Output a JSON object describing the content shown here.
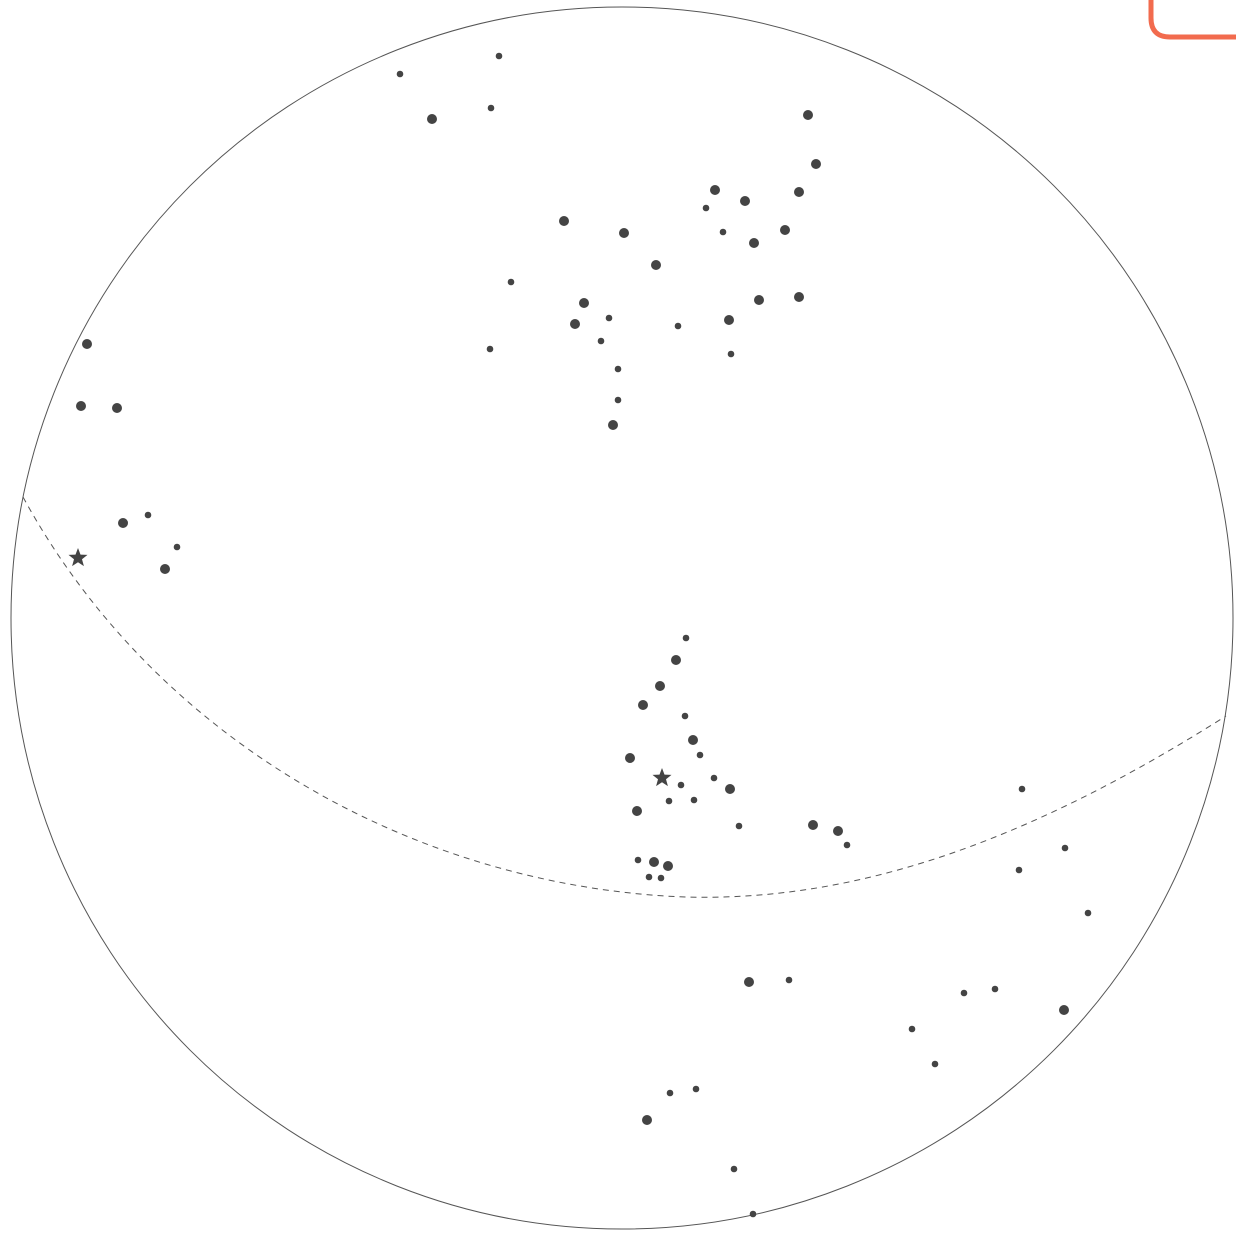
{
  "sky_map": {
    "colors": {
      "star": "#444444",
      "horizon_circle": "#555555",
      "ecliptic": "#555555",
      "corner_marker": "#F26B4E",
      "background": "#FFFFFF"
    },
    "ecliptic_style": "dashed",
    "objects": [
      {
        "kind": "bright-star"
      },
      {
        "kind": "faint-star"
      },
      {
        "kind": "faint-star"
      },
      {
        "kind": "faint-star"
      },
      {
        "kind": "bright-star"
      },
      {
        "kind": "bright-star"
      },
      {
        "kind": "bright-star"
      },
      {
        "kind": "bright-star"
      },
      {
        "kind": "bright-star"
      },
      {
        "kind": "faint-star"
      },
      {
        "kind": "bright-star"
      },
      {
        "kind": "bright-star"
      },
      {
        "kind": "bright-star"
      },
      {
        "kind": "bright-star"
      },
      {
        "kind": "faint-star"
      },
      {
        "kind": "bright-star"
      },
      {
        "kind": "bright-star"
      },
      {
        "kind": "bright-star"
      },
      {
        "kind": "faint-star"
      },
      {
        "kind": "faint-star"
      },
      {
        "kind": "faint-star"
      },
      {
        "kind": "faint-star"
      },
      {
        "kind": "bright-star"
      },
      {
        "kind": "bright-star"
      },
      {
        "kind": "faint-star"
      },
      {
        "kind": "bright-star"
      },
      {
        "kind": "faint-star"
      },
      {
        "kind": "faint-star"
      },
      {
        "kind": "bright-star"
      },
      {
        "kind": "bright-star"
      },
      {
        "kind": "bright-star"
      },
      {
        "kind": "faint-star"
      },
      {
        "kind": "faint-star"
      },
      {
        "kind": "bright-star"
      },
      {
        "kind": "planet"
      },
      {
        "kind": "faint-star"
      },
      {
        "kind": "bright-star"
      },
      {
        "kind": "bright-star"
      },
      {
        "kind": "bright-star"
      },
      {
        "kind": "faint-star"
      },
      {
        "kind": "bright-star"
      },
      {
        "kind": "faint-star"
      },
      {
        "kind": "bright-star"
      },
      {
        "kind": "planet"
      },
      {
        "kind": "faint-star"
      },
      {
        "kind": "faint-star"
      },
      {
        "kind": "faint-star"
      },
      {
        "kind": "bright-star"
      },
      {
        "kind": "faint-star"
      },
      {
        "kind": "bright-star"
      },
      {
        "kind": "bright-star"
      },
      {
        "kind": "faint-star"
      },
      {
        "kind": "faint-star"
      },
      {
        "kind": "faint-star"
      },
      {
        "kind": "bright-star"
      },
      {
        "kind": "bright-star"
      },
      {
        "kind": "faint-star"
      },
      {
        "kind": "faint-star"
      },
      {
        "kind": "faint-star"
      },
      {
        "kind": "faint-star"
      },
      {
        "kind": "faint-star"
      },
      {
        "kind": "bright-star"
      },
      {
        "kind": "faint-star"
      },
      {
        "kind": "bright-star"
      },
      {
        "kind": "faint-star"
      },
      {
        "kind": "faint-star"
      },
      {
        "kind": "faint-star"
      },
      {
        "kind": "bright-star"
      },
      {
        "kind": "faint-star"
      },
      {
        "kind": "faint-star"
      },
      {
        "kind": "bright-star"
      },
      {
        "kind": "faint-star"
      },
      {
        "kind": "bright-star"
      }
    ]
  }
}
